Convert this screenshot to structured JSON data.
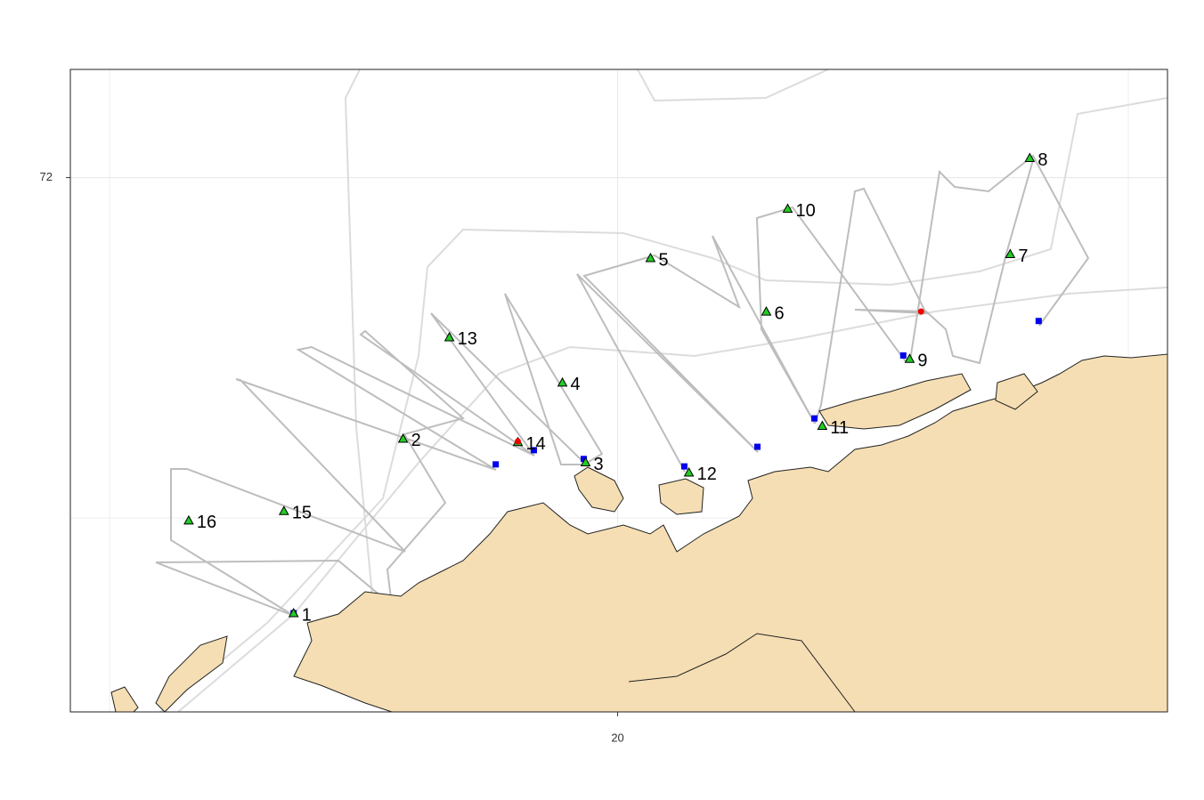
{
  "chart_data": {
    "type": "map",
    "xlim": [
      17.85,
      22.16
    ],
    "ylim": [
      71.21,
      72.16
    ],
    "xticks": [
      20
    ],
    "yticks": [
      72
    ],
    "grid": true,
    "stations": {
      "color": "#22cc22",
      "labels": [
        "1",
        "2",
        "3",
        "4",
        "5",
        "6",
        "7",
        "8",
        "9",
        "10",
        "11",
        "12",
        "13",
        "14",
        "15",
        "16"
      ],
      "x": [
        18.727,
        19.157,
        19.874,
        19.783,
        20.129,
        20.584,
        21.542,
        21.619,
        21.147,
        20.668,
        20.804,
        20.28,
        19.339,
        19.608,
        18.689,
        18.315
      ],
      "y": [
        71.356,
        71.614,
        71.579,
        71.697,
        71.881,
        71.802,
        71.887,
        72.029,
        71.732,
        71.954,
        71.633,
        71.564,
        71.764,
        71.609,
        71.507,
        71.493
      ]
    },
    "blue_points": {
      "color": "#0000ee",
      "x": [
        18.727,
        19.521,
        19.671,
        19.867,
        20.262,
        20.549,
        20.773,
        21.122,
        21.654
      ],
      "y": [
        71.356,
        71.576,
        71.597,
        71.584,
        71.573,
        71.602,
        71.644,
        71.737,
        71.788
      ]
    },
    "red_points": {
      "color": "#ee0000",
      "x": [
        19.608,
        21.192
      ],
      "y": [
        71.61,
        71.802
      ]
    }
  }
}
